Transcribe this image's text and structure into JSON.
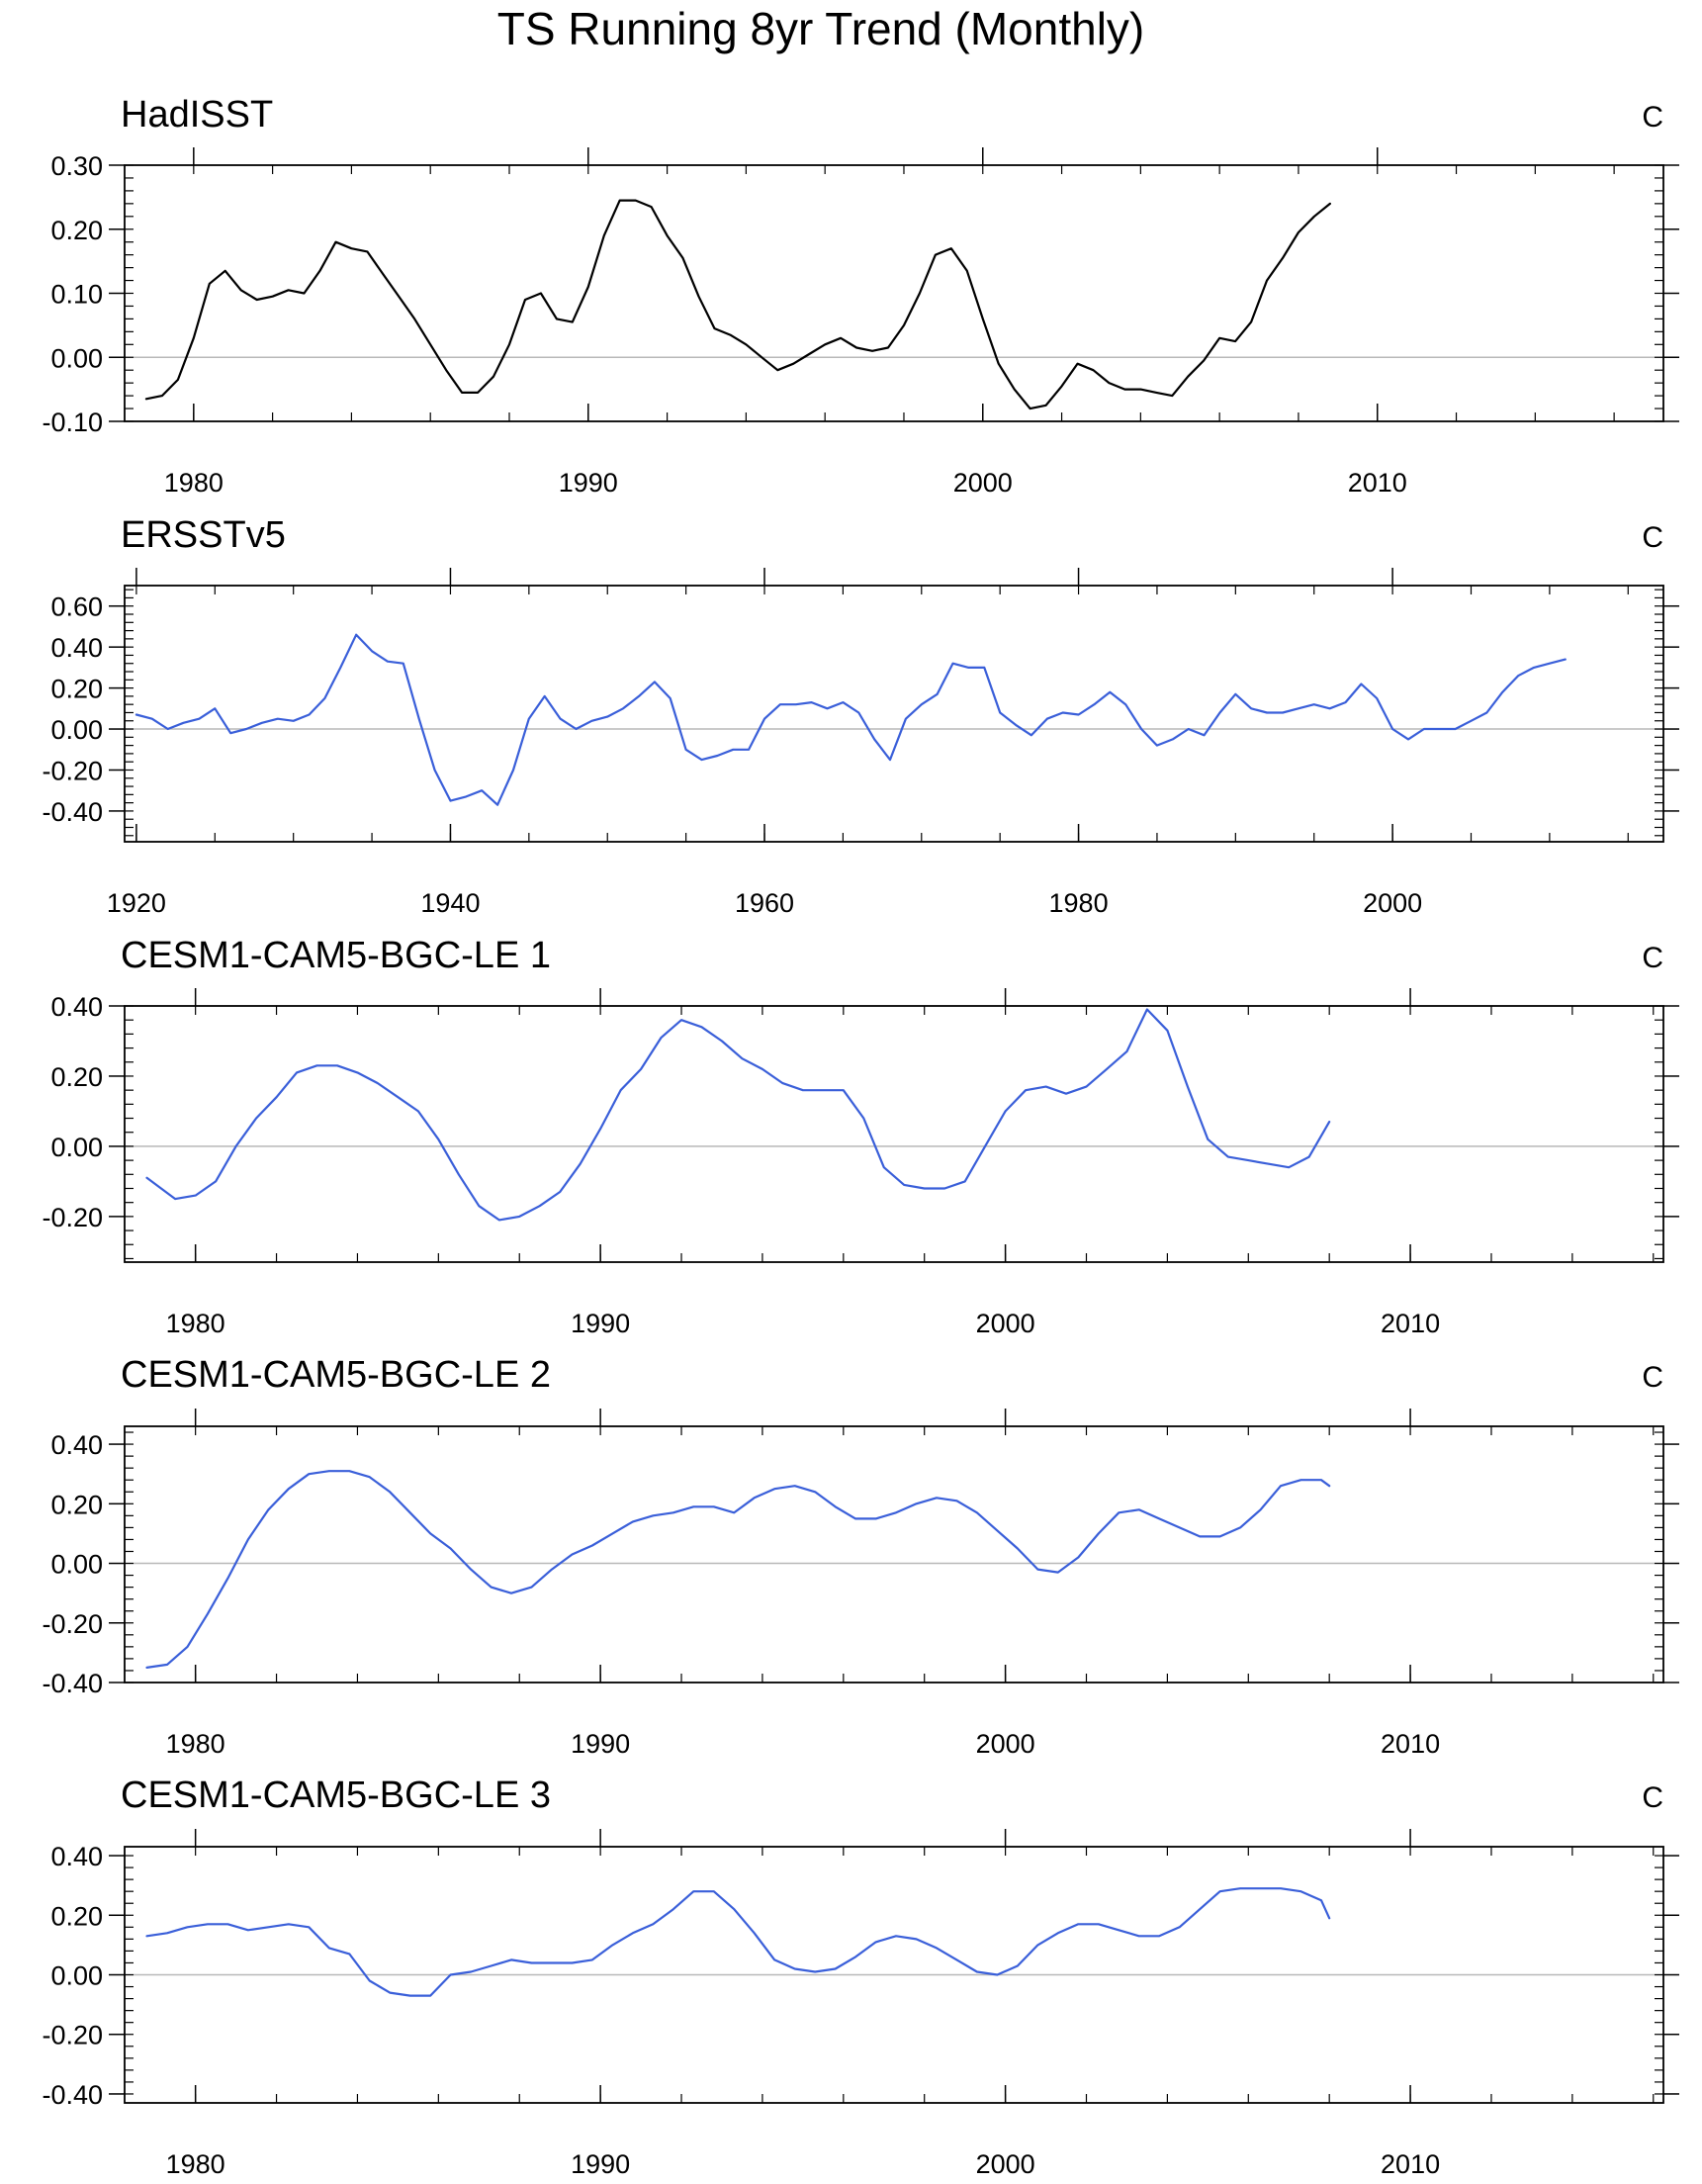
{
  "figure": {
    "title": "TS Running 8yr Trend (Monthly)"
  },
  "chart_data": [
    {
      "type": "line",
      "title": "HadISST",
      "units": "C",
      "xlim": [
        1978.25,
        2017.25
      ],
      "ylim": [
        -0.1,
        0.3
      ],
      "xticks": [
        1980,
        1990,
        2000,
        2010
      ],
      "xtick_labels": [
        "1980",
        "1990",
        "2000",
        "2010"
      ],
      "yticks": [
        -0.1,
        0.0,
        0.1,
        0.2,
        0.3
      ],
      "ytick_labels": [
        "-0.10",
        "0.00",
        "0.10",
        "0.20",
        "0.30"
      ],
      "zero_line": true,
      "series": [
        {
          "name": "HadISST",
          "color": "#000000",
          "x": [
            1978.8,
            1979.2,
            1979.6,
            1980.0,
            1980.4,
            1980.8,
            1981.2,
            1981.6,
            1982.0,
            1982.4,
            1982.8,
            1983.2,
            1983.6,
            1984.0,
            1984.4,
            1984.8,
            1985.2,
            1985.6,
            1986.0,
            1986.4,
            1986.8,
            1987.2,
            1987.6,
            1988.0,
            1988.4,
            1988.8,
            1989.2,
            1989.6,
            1990.0,
            1990.4,
            1990.8,
            1991.2,
            1991.6,
            1992.0,
            1992.4,
            1992.8,
            1993.2,
            1993.6,
            1994.0,
            1994.4,
            1994.8,
            1995.2,
            1995.6,
            1996.0,
            1996.4,
            1996.8,
            1997.2,
            1997.6,
            1998.0,
            1998.4,
            1998.8,
            1999.2,
            1999.6,
            2000.0,
            2000.4,
            2000.8,
            2001.2,
            2001.6,
            2002.0,
            2002.4,
            2002.8,
            2003.2,
            2003.6,
            2004.0,
            2004.4,
            2004.8,
            2005.2,
            2005.6,
            2006.0,
            2006.4,
            2006.8,
            2007.2,
            2007.6,
            2008.0,
            2008.4,
            2008.8
          ],
          "y": [
            -0.065,
            -0.06,
            -0.035,
            0.03,
            0.115,
            0.135,
            0.105,
            0.09,
            0.095,
            0.105,
            0.1,
            0.135,
            0.18,
            0.17,
            0.165,
            0.13,
            0.095,
            0.06,
            0.02,
            -0.02,
            -0.055,
            -0.055,
            -0.03,
            0.02,
            0.09,
            0.1,
            0.06,
            0.055,
            0.11,
            0.19,
            0.245,
            0.245,
            0.235,
            0.19,
            0.155,
            0.095,
            0.045,
            0.035,
            0.02,
            0.0,
            -0.02,
            -0.01,
            0.005,
            0.02,
            0.03,
            0.015,
            0.01,
            0.015,
            0.05,
            0.1,
            0.16,
            0.17,
            0.135,
            0.06,
            -0.01,
            -0.05,
            -0.08,
            -0.075,
            -0.045,
            -0.01,
            -0.02,
            -0.04,
            -0.05,
            -0.05,
            -0.055,
            -0.06,
            -0.03,
            -0.005,
            0.03,
            0.025,
            0.055,
            0.12,
            0.155,
            0.195,
            0.22,
            0.24
          ]
        }
      ]
    },
    {
      "type": "line",
      "title": "ERSSTv5",
      "units": "C",
      "xlim": [
        1919.25,
        2017.25
      ],
      "ylim": [
        -0.55,
        0.7
      ],
      "xticks": [
        1920,
        1940,
        1960,
        1980,
        2000
      ],
      "xtick_labels": [
        "1920",
        "1940",
        "1960",
        "1980",
        "2000"
      ],
      "yticks": [
        -0.4,
        -0.2,
        0.0,
        0.2,
        0.4,
        0.6
      ],
      "ytick_labels": [
        "-0.40",
        "-0.20",
        "0.00",
        "0.20",
        "0.40",
        "0.60"
      ],
      "zero_line": true,
      "series": [
        {
          "name": "ERSSTv5",
          "color": "#3A5FD9",
          "x": [
            1920,
            1921,
            1922,
            1923,
            1924,
            1925,
            1926,
            1927,
            1928,
            1929,
            1930,
            1931,
            1932,
            1933,
            1934,
            1935,
            1936,
            1937,
            1938,
            1939,
            1940,
            1941,
            1942,
            1943,
            1944,
            1945,
            1946,
            1947,
            1948,
            1949,
            1950,
            1951,
            1952,
            1953,
            1954,
            1955,
            1956,
            1957,
            1958,
            1959,
            1960,
            1961,
            1962,
            1963,
            1964,
            1965,
            1966,
            1967,
            1968,
            1969,
            1970,
            1971,
            1972,
            1973,
            1974,
            1975,
            1976,
            1977,
            1978,
            1979,
            1980,
            1981,
            1982,
            1983,
            1984,
            1985,
            1986,
            1987,
            1988,
            1989,
            1990,
            1991,
            1992,
            1993,
            1994,
            1995,
            1996,
            1997,
            1998,
            1999,
            2000,
            2001,
            2002,
            2003,
            2004,
            2005,
            2006,
            2007,
            2008,
            2009,
            2010,
            2011
          ],
          "y": [
            0.07,
            0.05,
            0.0,
            0.03,
            0.05,
            0.1,
            -0.02,
            0.0,
            0.03,
            0.05,
            0.04,
            0.07,
            0.15,
            0.3,
            0.46,
            0.38,
            0.33,
            0.32,
            0.05,
            -0.2,
            -0.35,
            -0.33,
            -0.3,
            -0.37,
            -0.2,
            0.05,
            0.16,
            0.05,
            0.0,
            0.04,
            0.06,
            0.1,
            0.16,
            0.23,
            0.15,
            -0.1,
            -0.15,
            -0.13,
            -0.1,
            -0.1,
            0.05,
            0.12,
            0.12,
            0.13,
            0.1,
            0.13,
            0.08,
            -0.05,
            -0.15,
            0.05,
            0.12,
            0.17,
            0.32,
            0.3,
            0.3,
            0.08,
            0.02,
            -0.03,
            0.05,
            0.08,
            0.07,
            0.12,
            0.18,
            0.12,
            0.0,
            -0.08,
            -0.05,
            0.0,
            -0.03,
            0.08,
            0.17,
            0.1,
            0.08,
            0.08,
            0.1,
            0.12,
            0.1,
            0.13,
            0.22,
            0.15,
            0.0,
            -0.05,
            0.0,
            0.0,
            0.0,
            0.04,
            0.08,
            0.18,
            0.26,
            0.3,
            0.32,
            0.34
          ]
        }
      ]
    },
    {
      "type": "line",
      "title": "CESM1-CAM5-BGC-LE 1",
      "units": "C",
      "xlim": [
        1978.25,
        2016.25
      ],
      "ylim": [
        -0.33,
        0.4
      ],
      "xticks": [
        1980,
        1990,
        2000,
        2010
      ],
      "xtick_labels": [
        "1980",
        "1990",
        "2000",
        "2010"
      ],
      "yticks": [
        -0.2,
        0.0,
        0.2,
        0.4
      ],
      "ytick_labels": [
        "-0.20",
        "0.00",
        "0.20",
        "0.40"
      ],
      "zero_line": true,
      "series": [
        {
          "name": "CESM1-CAM5-BGC-LE 1",
          "color": "#3A5FD9",
          "x": [
            1978.8,
            1979.5,
            1980.0,
            1980.5,
            1981.0,
            1981.5,
            1982.0,
            1982.5,
            1983.0,
            1983.5,
            1984.0,
            1984.5,
            1985.0,
            1985.5,
            1986.0,
            1986.5,
            1987.0,
            1987.5,
            1988.0,
            1988.5,
            1989.0,
            1989.5,
            1990.0,
            1990.5,
            1991.0,
            1991.5,
            1992.0,
            1992.5,
            1993.0,
            1993.5,
            1994.0,
            1994.5,
            1995.0,
            1995.5,
            1996.0,
            1996.5,
            1997.0,
            1997.5,
            1998.0,
            1998.5,
            1999.0,
            1999.5,
            2000.0,
            2000.5,
            2001.0,
            2001.5,
            2002.0,
            2002.5,
            2003.0,
            2003.5,
            2004.0,
            2004.5,
            2005.0,
            2005.5,
            2006.0,
            2006.5,
            2007.0,
            2007.5,
            2008.0
          ],
          "y": [
            -0.09,
            -0.15,
            -0.14,
            -0.1,
            0.0,
            0.08,
            0.14,
            0.21,
            0.23,
            0.23,
            0.21,
            0.18,
            0.14,
            0.1,
            0.02,
            -0.08,
            -0.17,
            -0.21,
            -0.2,
            -0.17,
            -0.13,
            -0.05,
            0.05,
            0.16,
            0.22,
            0.31,
            0.36,
            0.34,
            0.3,
            0.25,
            0.22,
            0.18,
            0.16,
            0.16,
            0.16,
            0.08,
            -0.06,
            -0.11,
            -0.12,
            -0.12,
            -0.1,
            0.0,
            0.1,
            0.16,
            0.17,
            0.15,
            0.17,
            0.22,
            0.27,
            0.39,
            0.33,
            0.17,
            0.02,
            -0.03,
            -0.04,
            -0.05,
            -0.06,
            -0.03,
            0.07
          ]
        }
      ]
    },
    {
      "type": "line",
      "title": "CESM1-CAM5-BGC-LE 2",
      "units": "C",
      "xlim": [
        1978.25,
        2016.25
      ],
      "ylim": [
        -0.4,
        0.46
      ],
      "xticks": [
        1980,
        1990,
        2000,
        2010
      ],
      "xtick_labels": [
        "1980",
        "1990",
        "2000",
        "2010"
      ],
      "yticks": [
        -0.4,
        -0.2,
        0.0,
        0.2,
        0.4
      ],
      "ytick_labels": [
        "-0.40",
        "-0.20",
        "0.00",
        "0.20",
        "0.40"
      ],
      "zero_line": true,
      "series": [
        {
          "name": "CESM1-CAM5-BGC-LE 2",
          "color": "#3A5FD9",
          "x": [
            1978.8,
            1979.3,
            1979.8,
            1980.3,
            1980.8,
            1981.3,
            1981.8,
            1982.3,
            1982.8,
            1983.3,
            1983.8,
            1984.3,
            1984.8,
            1985.3,
            1985.8,
            1986.3,
            1986.8,
            1987.3,
            1987.8,
            1988.3,
            1988.8,
            1989.3,
            1989.8,
            1990.3,
            1990.8,
            1991.3,
            1991.8,
            1992.3,
            1992.8,
            1993.3,
            1993.8,
            1994.3,
            1994.8,
            1995.3,
            1995.8,
            1996.3,
            1996.8,
            1997.3,
            1997.8,
            1998.3,
            1998.8,
            1999.3,
            1999.8,
            2000.3,
            2000.8,
            2001.3,
            2001.8,
            2002.3,
            2002.8,
            2003.3,
            2003.8,
            2004.3,
            2004.8,
            2005.3,
            2005.8,
            2006.3,
            2006.8,
            2007.3,
            2007.8,
            2008.0
          ],
          "y": [
            -0.35,
            -0.34,
            -0.28,
            -0.17,
            -0.05,
            0.08,
            0.18,
            0.25,
            0.3,
            0.31,
            0.31,
            0.29,
            0.24,
            0.17,
            0.1,
            0.05,
            -0.02,
            -0.08,
            -0.1,
            -0.08,
            -0.02,
            0.03,
            0.06,
            0.1,
            0.14,
            0.16,
            0.17,
            0.19,
            0.19,
            0.17,
            0.22,
            0.25,
            0.26,
            0.24,
            0.19,
            0.15,
            0.15,
            0.17,
            0.2,
            0.22,
            0.21,
            0.17,
            0.11,
            0.05,
            -0.02,
            -0.03,
            0.02,
            0.1,
            0.17,
            0.18,
            0.15,
            0.12,
            0.09,
            0.09,
            0.12,
            0.18,
            0.26,
            0.28,
            0.28,
            0.26
          ]
        }
      ]
    },
    {
      "type": "line",
      "title": "CESM1-CAM5-BGC-LE 3",
      "units": "C",
      "xlim": [
        1978.25,
        2016.25
      ],
      "ylim": [
        -0.43,
        0.43
      ],
      "xticks": [
        1980,
        1990,
        2000,
        2010
      ],
      "xtick_labels": [
        "1980",
        "1990",
        "2000",
        "2010"
      ],
      "yticks": [
        -0.4,
        -0.2,
        0.0,
        0.2,
        0.4
      ],
      "ytick_labels": [
        "-0.40",
        "-0.20",
        "0.00",
        "0.20",
        "0.40"
      ],
      "zero_line": true,
      "series": [
        {
          "name": "CESM1-CAM5-BGC-LE 3",
          "color": "#3A5FD9",
          "x": [
            1978.8,
            1979.3,
            1979.8,
            1980.3,
            1980.8,
            1981.3,
            1981.8,
            1982.3,
            1982.8,
            1983.3,
            1983.8,
            1984.3,
            1984.8,
            1985.3,
            1985.8,
            1986.3,
            1986.8,
            1987.3,
            1987.8,
            1988.3,
            1988.8,
            1989.3,
            1989.8,
            1990.3,
            1990.8,
            1991.3,
            1991.8,
            1992.3,
            1992.8,
            1993.3,
            1993.8,
            1994.3,
            1994.8,
            1995.3,
            1995.8,
            1996.3,
            1996.8,
            1997.3,
            1997.8,
            1998.3,
            1998.8,
            1999.3,
            1999.8,
            2000.3,
            2000.8,
            2001.3,
            2001.8,
            2002.3,
            2002.8,
            2003.3,
            2003.8,
            2004.3,
            2004.8,
            2005.3,
            2005.8,
            2006.3,
            2006.8,
            2007.3,
            2007.8,
            2008.0
          ],
          "y": [
            0.13,
            0.14,
            0.16,
            0.17,
            0.17,
            0.15,
            0.16,
            0.17,
            0.16,
            0.09,
            0.07,
            -0.02,
            -0.06,
            -0.07,
            -0.07,
            0.0,
            0.01,
            0.03,
            0.05,
            0.04,
            0.04,
            0.04,
            0.05,
            0.1,
            0.14,
            0.17,
            0.22,
            0.28,
            0.28,
            0.22,
            0.14,
            0.05,
            0.02,
            0.01,
            0.02,
            0.06,
            0.11,
            0.13,
            0.12,
            0.09,
            0.05,
            0.01,
            0.0,
            0.03,
            0.1,
            0.14,
            0.17,
            0.17,
            0.15,
            0.13,
            0.13,
            0.16,
            0.22,
            0.28,
            0.29,
            0.29,
            0.29,
            0.28,
            0.25,
            0.19
          ]
        }
      ]
    }
  ]
}
